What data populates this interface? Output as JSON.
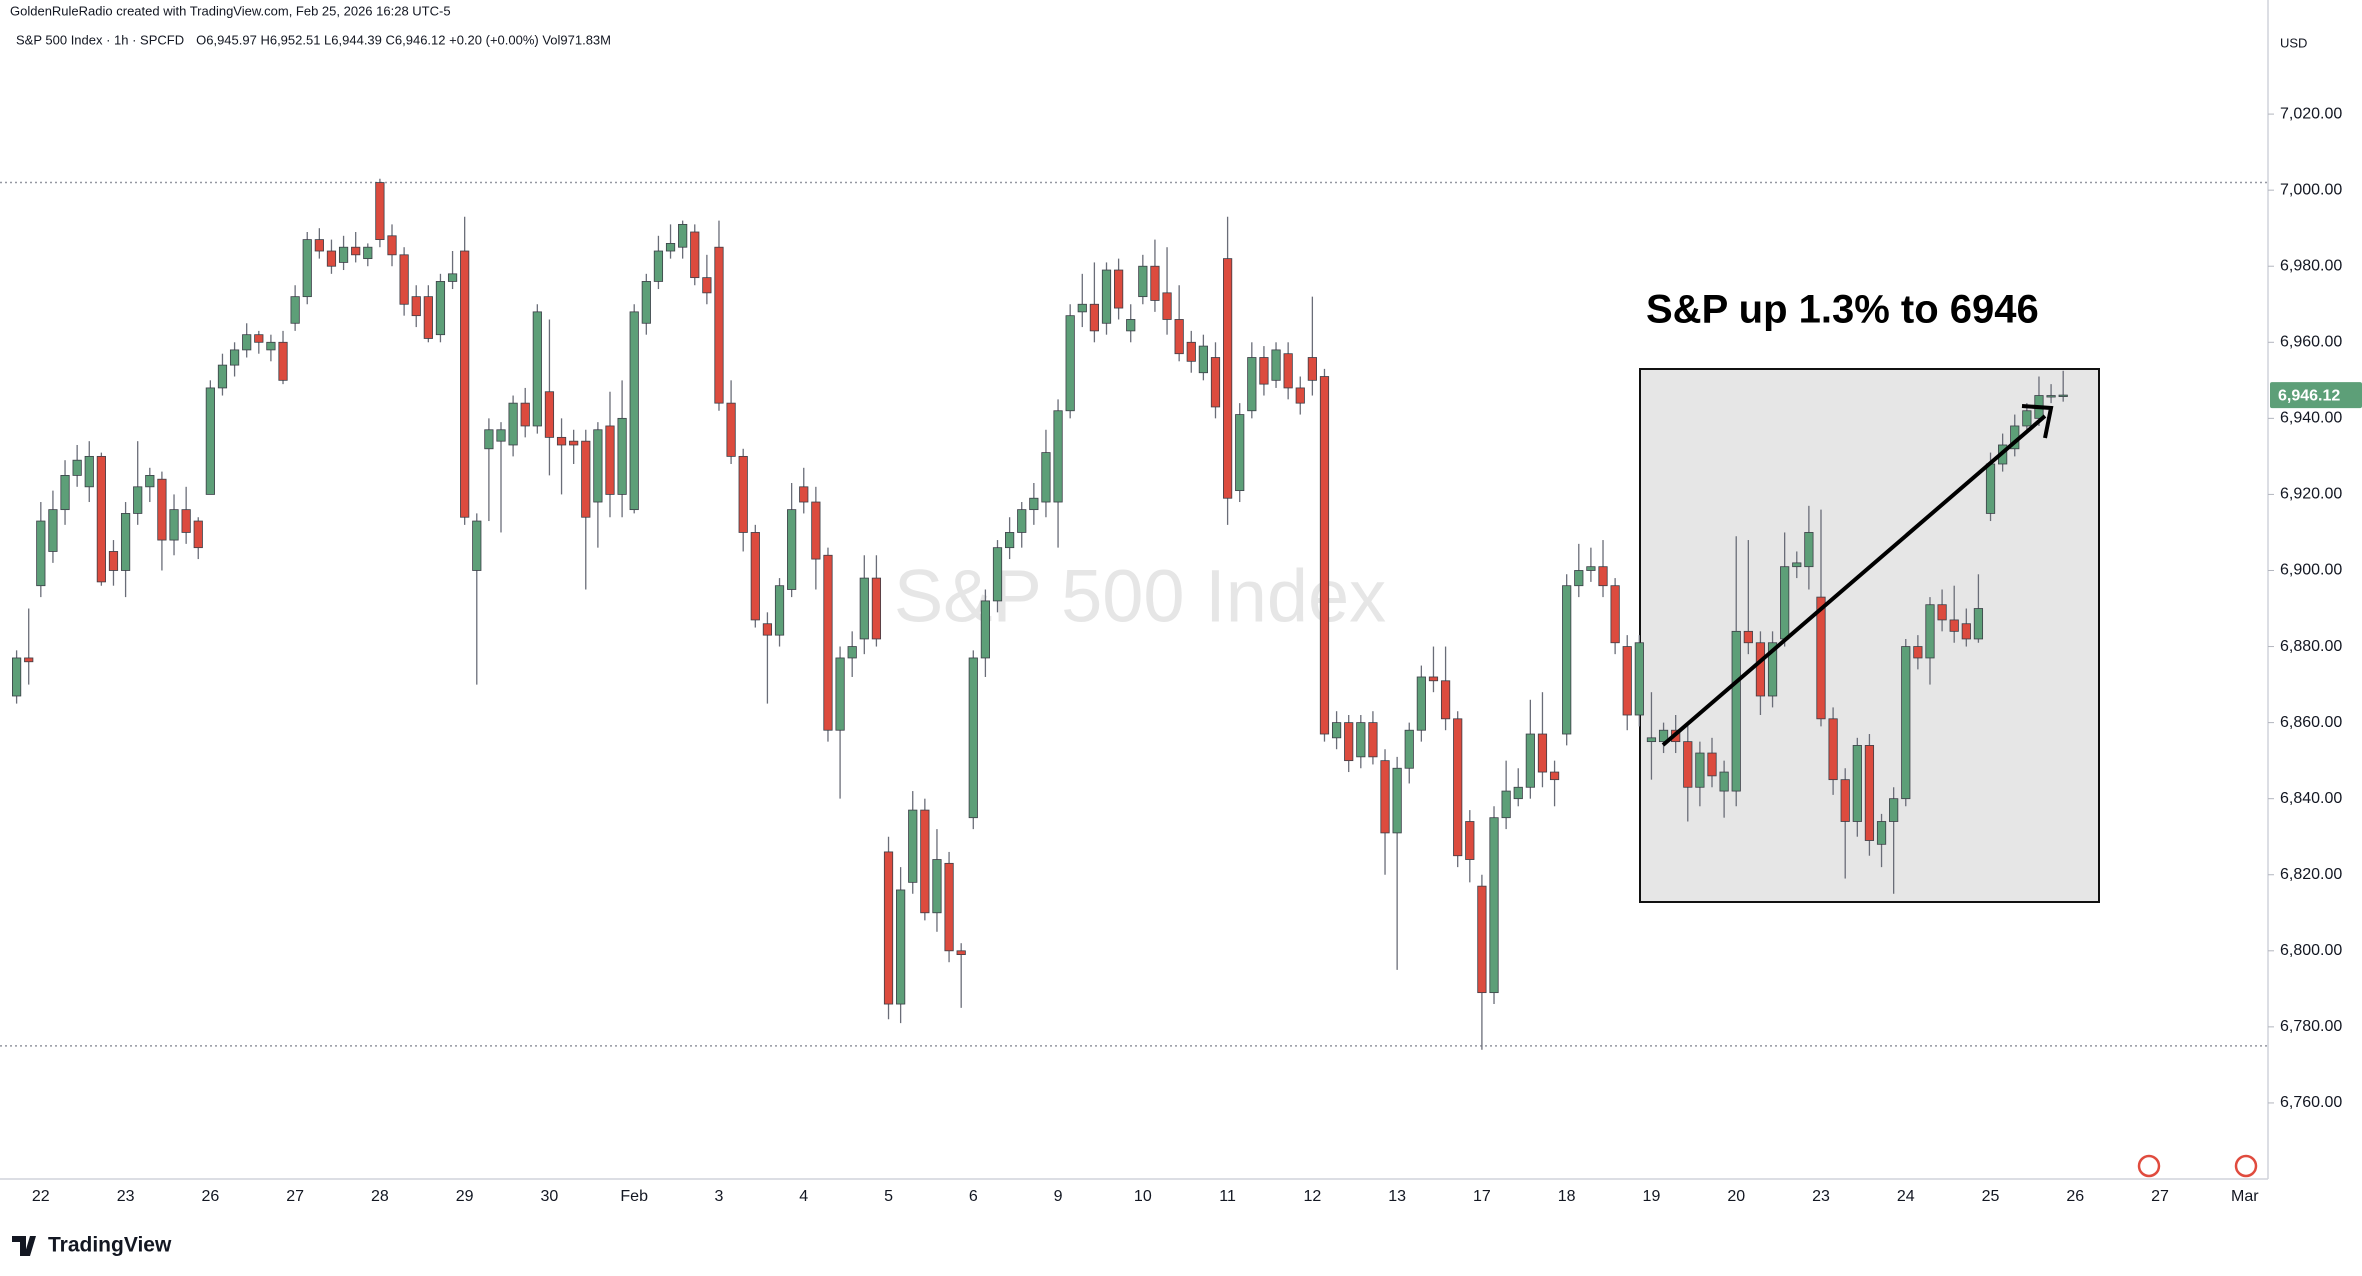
{
  "chart_data": {
    "type": "candlestick",
    "header": "GoldenRuleRadio created with TradingView.com, Feb 25, 2026 16:28 UTC-5",
    "title": "S&P 500 Index · 1h · SPCFD",
    "subtitle": "O6,945.97 H6,952.51 L6,944.39 C6,946.12 +0.20 (+0.00%) Vol971.83M",
    "currency": "USD",
    "watermark": "S&P 500 Index",
    "annotation": "S&P up 1.3% to 6946",
    "last_price_label": "6,946.12",
    "logo": "TradingView",
    "up_color": "#5d9f78",
    "down_color": "#dc4b3e",
    "grid": false,
    "hlines": [
      7002,
      6775
    ],
    "ylim": [
      6740,
      7050
    ],
    "yticks": [
      {
        "value": 6760,
        "label": "6,760.00"
      },
      {
        "value": 6780,
        "label": "6,780.00"
      },
      {
        "value": 6800,
        "label": "6,800.00"
      },
      {
        "value": 6820,
        "label": "6,820.00"
      },
      {
        "value": 6840,
        "label": "6,840.00"
      },
      {
        "value": 6860,
        "label": "6,860.00"
      },
      {
        "value": 6880,
        "label": "6,880.00"
      },
      {
        "value": 6900,
        "label": "6,900.00"
      },
      {
        "value": 6920,
        "label": "6,920.00"
      },
      {
        "value": 6940,
        "label": "6,940.00"
      },
      {
        "value": 6960,
        "label": "6,960.00"
      },
      {
        "value": 6980,
        "label": "6,980.00"
      },
      {
        "value": 7000,
        "label": "7,000.00"
      },
      {
        "value": 7020,
        "label": "7,020.00"
      }
    ],
    "categories": [
      null,
      null,
      "22",
      null,
      null,
      null,
      null,
      null,
      null,
      "23",
      null,
      null,
      null,
      null,
      null,
      null,
      "26",
      null,
      null,
      null,
      null,
      null,
      null,
      "27",
      null,
      null,
      null,
      null,
      null,
      null,
      "28",
      null,
      null,
      null,
      null,
      null,
      null,
      "29",
      null,
      null,
      null,
      null,
      null,
      null,
      "30",
      null,
      null,
      null,
      null,
      null,
      null,
      "Feb",
      null,
      null,
      null,
      null,
      null,
      null,
      "3",
      null,
      null,
      null,
      null,
      null,
      null,
      "4",
      null,
      null,
      null,
      null,
      null,
      null,
      "5",
      null,
      null,
      null,
      null,
      null,
      null,
      "6",
      null,
      null,
      null,
      null,
      null,
      null,
      "9",
      null,
      null,
      null,
      null,
      null,
      null,
      "10",
      null,
      null,
      null,
      null,
      null,
      null,
      "11",
      null,
      null,
      null,
      null,
      null,
      null,
      "12",
      null,
      null,
      null,
      null,
      null,
      null,
      "13",
      null,
      null,
      null,
      null,
      null,
      null,
      "17",
      null,
      null,
      null,
      null,
      null,
      null,
      "18",
      null,
      null,
      null,
      null,
      null,
      null,
      "19",
      null,
      null,
      null,
      null,
      null,
      null,
      "20",
      null,
      null,
      null,
      null,
      null,
      null,
      "23",
      null,
      null,
      null,
      null,
      null,
      null,
      "24",
      null,
      null,
      null,
      null,
      null,
      null,
      "25",
      null,
      null,
      null,
      null,
      null,
      null,
      "26",
      null,
      null,
      null,
      null,
      null,
      null,
      "27",
      null,
      null,
      null,
      null,
      null,
      null,
      "Mar"
    ],
    "open": [
      6867,
      6877,
      6896,
      6905,
      6916,
      6925,
      6922,
      6930,
      6905,
      6900,
      6915,
      6922,
      6924,
      6908,
      6916,
      6913,
      6920,
      6948,
      6954,
      6958,
      6962,
      6958,
      6960,
      6965,
      6972,
      6987,
      6984,
      6981,
      6985,
      6982,
      7002,
      6988,
      6983,
      6972,
      6972,
      6962,
      6976,
      6984,
      6900,
      6932,
      6934,
      6933,
      6944,
      6938,
      6947,
      6935,
      6934,
      6934,
      6918,
      6938,
      6920,
      6916,
      6965,
      6976,
      6984,
      6985,
      6989,
      6977,
      6985,
      6944,
      6930,
      6910,
      6886,
      6883,
      6895,
      6922,
      6918,
      6904,
      6858,
      6877,
      6882,
      6898,
      6826,
      6786,
      6818,
      6837,
      6810,
      6823,
      6800,
      6835,
      6877,
      6892,
      6906,
      6910,
      6916,
      6918,
      6918,
      6942,
      6968,
      6970,
      6965,
      6979,
      6963,
      6972,
      6980,
      6973,
      6966,
      6960,
      6952,
      6956,
      6982,
      6921,
      6942,
      6956,
      6950,
      6957,
      6948,
      6956,
      6951,
      6856,
      6860,
      6851,
      6860,
      6850,
      6831,
      6848,
      6858,
      6872,
      6871,
      6861,
      6834,
      6817,
      6789,
      6835,
      6840,
      6843,
      6857,
      6847,
      6857,
      6896,
      6900,
      6901,
      6896,
      6880,
      6862,
      6855,
      6855,
      6858,
      6855,
      6843,
      6852,
      6842,
      6842,
      6884,
      6881,
      6867,
      6882,
      6901,
      6901,
      6893,
      6861,
      6845,
      6834,
      6854,
      6828,
      6834,
      6840,
      6880,
      6877,
      6891,
      6887,
      6886,
      6882,
      6915,
      6928,
      6932,
      6938,
      6940,
      6946,
      6945.97,
      null,
      null,
      null,
      null,
      null,
      null,
      null,
      null,
      null,
      null,
      null,
      null,
      null,
      null,
      null
    ],
    "high": [
      6879,
      6890,
      6918,
      6921,
      6929,
      6933,
      6934,
      6931,
      6908,
      6918,
      6934,
      6927,
      6926,
      6920,
      6922,
      6914,
      6950,
      6957,
      6960,
      6965,
      6963,
      6962,
      6963,
      6975,
      6989,
      6990,
      6987,
      6988,
      6989,
      6986,
      7003,
      6991,
      6985,
      6975,
      6975,
      6978,
      6984,
      6993,
      6915,
      6940,
      6939,
      6946,
      6948,
      6970,
      6966,
      6940,
      6937,
      6937,
      6939,
      6947,
      6950,
      6970,
      6978,
      6988,
      6991,
      6992,
      6991,
      6983,
      6992,
      6950,
      6932,
      6912,
      6889,
      6898,
      6923,
      6927,
      6922,
      6906,
      6880,
      6884,
      6904,
      6904,
      6830,
      6822,
      6842,
      6840,
      6832,
      6826,
      6802,
      6879,
      6895,
      6908,
      6914,
      6918,
      6923,
      6937,
      6945,
      6970,
      6978,
      6981,
      6981,
      6982,
      6970,
      6983,
      6987,
      6985,
      6975,
      6963,
      6962,
      6960,
      6993,
      6944,
      6960,
      6959,
      6960,
      6960,
      6951,
      6972,
      6953,
      6863,
      6862,
      6862,
      6863,
      6853,
      6851,
      6860,
      6875,
      6880,
      6880,
      6863,
      6837,
      6820,
      6838,
      6850,
      6848,
      6866,
      6868,
      6850,
      6899,
      6907,
      6906,
      6908,
      6898,
      6883,
      6883,
      6868,
      6860,
      6862,
      6860,
      6855,
      6856,
      6850,
      6909,
      6908,
      6884,
      6884,
      6910,
      6905,
      6917,
      6916,
      6864,
      6848,
      6856,
      6857,
      6836,
      6843,
      6882,
      6883,
      6893,
      6895,
      6896,
      6890,
      6899,
      6931,
      6936,
      6941,
      6944,
      6951,
      6949,
      6952.51,
      null,
      null,
      null,
      null,
      null,
      null,
      null,
      null,
      null,
      null,
      null,
      null,
      null,
      null,
      null
    ],
    "low": [
      6865,
      6870,
      6893,
      6902,
      6912,
      6922,
      6918,
      6896,
      6896,
      6893,
      6912,
      6918,
      6900,
      6904,
      6907,
      6903,
      6920,
      6946,
      6951,
      6956,
      6957,
      6955,
      6949,
      6963,
      6970,
      6982,
      6978,
      6979,
      6981,
      6980,
      6985,
      6980,
      6967,
      6964,
      6960,
      6960,
      6974,
      6912,
      6870,
      6913,
      6910,
      6930,
      6935,
      6936,
      6925,
      6920,
      6928,
      6895,
      6906,
      6914,
      6914,
      6915,
      6962,
      6974,
      6982,
      6982,
      6975,
      6970,
      6942,
      6928,
      6905,
      6885,
      6865,
      6880,
      6893,
      6915,
      6895,
      6855,
      6840,
      6872,
      6878,
      6880,
      6782,
      6781,
      6815,
      6808,
      6805,
      6797,
      6785,
      6832,
      6872,
      6889,
      6903,
      6906,
      6912,
      6914,
      6906,
      6940,
      6964,
      6960,
      6962,
      6966,
      6960,
      6970,
      6968,
      6962,
      6955,
      6952,
      6950,
      6940,
      6912,
      6918,
      6940,
      6946,
      6948,
      6945,
      6941,
      6946,
      6855,
      6853,
      6847,
      6848,
      6849,
      6820,
      6795,
      6844,
      6855,
      6868,
      6858,
      6822,
      6818,
      6774,
      6786,
      6832,
      6838,
      6840,
      6843,
      6838,
      6854,
      6893,
      6897,
      6893,
      6878,
      6858,
      6859,
      6845,
      6852,
      6852,
      6834,
      6838,
      6843,
      6835,
      6838,
      6878,
      6862,
      6864,
      6880,
      6898,
      6895,
      6859,
      6841,
      6819,
      6830,
      6825,
      6822,
      6815,
      6838,
      6874,
      6870,
      6884,
      6881,
      6880,
      6881,
      6913,
      6926,
      6930,
      6936,
      6938,
      6944,
      6944.39,
      null,
      null,
      null,
      null,
      null,
      null,
      null,
      null,
      null,
      null,
      null,
      null,
      null,
      null,
      null
    ],
    "close": [
      6877,
      6876,
      6913,
      6916,
      6925,
      6929,
      6930,
      6897,
      6900,
      6915,
      6922,
      6925,
      6908,
      6916,
      6910,
      6906,
      6948,
      6954,
      6958,
      6962,
      6960,
      6960,
      6950,
      6972,
      6987,
      6984,
      6980,
      6985,
      6983,
      6985,
      6987,
      6983,
      6970,
      6967,
      6961,
      6976,
      6978,
      6914,
      6913,
      6937,
      6937,
      6944,
      6938,
      6968,
      6935,
      6933,
      6933,
      6914,
      6937,
      6920,
      6940,
      6968,
      6976,
      6984,
      6986,
      6991,
      6977,
      6973,
      6944,
      6930,
      6910,
      6887,
      6883,
      6896,
      6916,
      6918,
      6903,
      6858,
      6877,
      6880,
      6898,
      6882,
      6786,
      6816,
      6837,
      6810,
      6824,
      6800,
      6799,
      6877,
      6892,
      6906,
      6910,
      6916,
      6919,
      6931,
      6942,
      6967,
      6970,
      6963,
      6979,
      6969,
      6966,
      6980,
      6971,
      6966,
      6957,
      6955,
      6959,
      6943,
      6919,
      6941,
      6956,
      6949,
      6958,
      6948,
      6944,
      6950,
      6857,
      6860,
      6850,
      6860,
      6851,
      6831,
      6848,
      6858,
      6872,
      6871,
      6861,
      6825,
      6824,
      6789,
      6835,
      6842,
      6843,
      6857,
      6847,
      6845,
      6896,
      6900,
      6901,
      6896,
      6881,
      6862,
      6881,
      6856,
      6858,
      6855,
      6843,
      6852,
      6846,
      6847,
      6884,
      6881,
      6867,
      6881,
      6901,
      6902,
      6910,
      6861,
      6845,
      6834,
      6854,
      6829,
      6834,
      6840,
      6880,
      6877,
      6891,
      6887,
      6884,
      6882,
      6890,
      6928,
      6933,
      6938,
      6942,
      6946,
      6946,
      6946.12,
      null,
      null,
      null,
      null,
      null,
      null,
      null,
      null,
      null,
      null,
      null,
      null,
      null,
      null,
      null
    ]
  }
}
